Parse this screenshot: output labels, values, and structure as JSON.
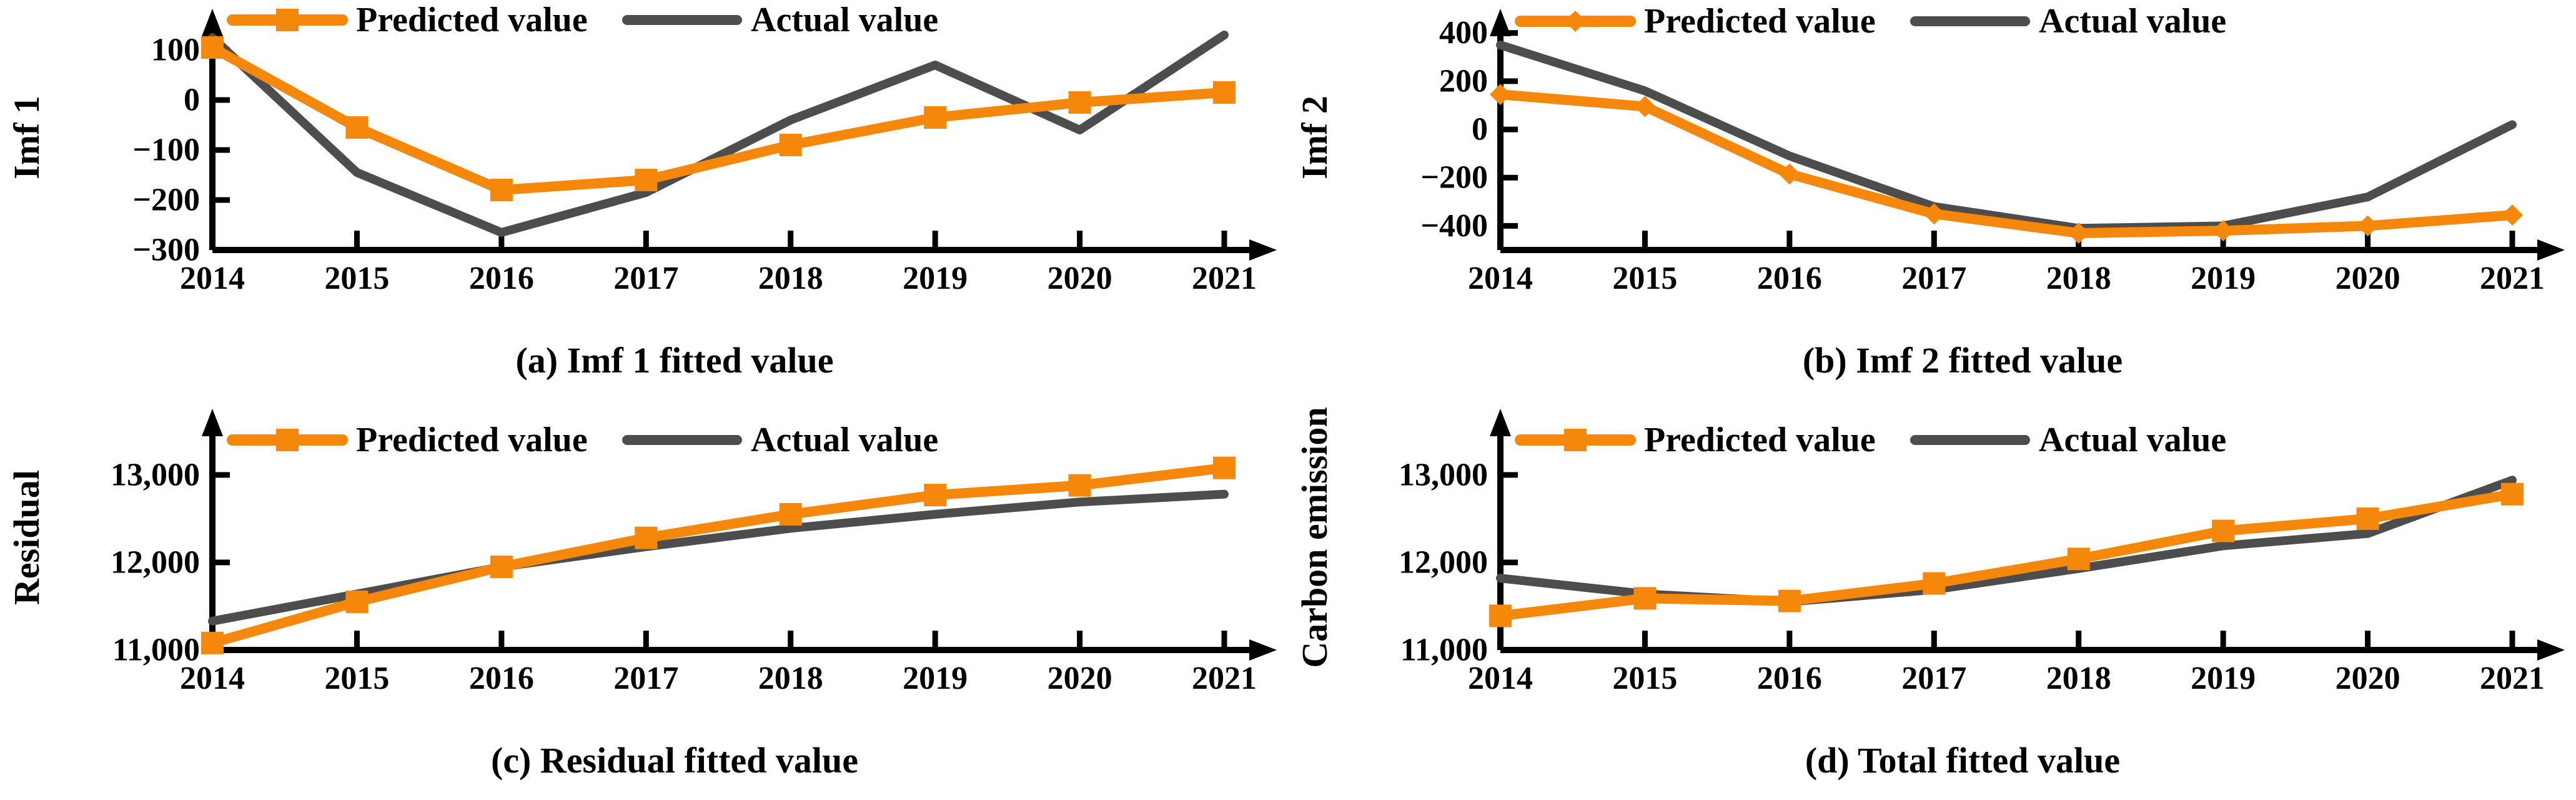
{
  "figure": {
    "background": "#ffffff",
    "legend": {
      "predicted_label": "Predicted value",
      "actual_label": "Actual value"
    },
    "colors": {
      "predicted": "#F5870A",
      "actual": "#4D4D4D",
      "axis": "#000000",
      "text": "#000000"
    }
  },
  "chart_data": [
    {
      "type": "line",
      "title": "(a) Imf 1 fitted value",
      "ylabel": "Imf 1",
      "xlabel": "",
      "x": [
        2014,
        2015,
        2016,
        2017,
        2018,
        2019,
        2020,
        2021
      ],
      "series": [
        {
          "name": "Predicted value",
          "color": "#F5870A",
          "marker": "square",
          "values": [
            105,
            -55,
            -180,
            -160,
            -90,
            -35,
            -5,
            15
          ]
        },
        {
          "name": "Actual value",
          "color": "#4D4D4D",
          "marker": "none",
          "values": [
            125,
            -145,
            -265,
            -185,
            -40,
            70,
            -60,
            130
          ]
        }
      ],
      "ylim": [
        -300,
        150
      ],
      "yticks": [
        {
          "v": 100,
          "label": "100"
        },
        {
          "v": 0,
          "label": "0"
        },
        {
          "v": -100,
          "label": "−100"
        },
        {
          "v": -200,
          "label": "−200"
        },
        {
          "v": -300,
          "label": "−300"
        }
      ],
      "grid": false,
      "legend_position": "top-inside"
    },
    {
      "type": "line",
      "title": "(b) Imf 2 fitted value",
      "ylabel": "Imf 2",
      "xlabel": "",
      "x": [
        2014,
        2015,
        2016,
        2017,
        2018,
        2019,
        2020,
        2021
      ],
      "series": [
        {
          "name": "Predicted value",
          "color": "#F5870A",
          "marker": "diamond",
          "values": [
            145,
            95,
            -185,
            -350,
            -430,
            -420,
            -400,
            -355
          ]
        },
        {
          "name": "Actual value",
          "color": "#4D4D4D",
          "marker": "none",
          "values": [
            350,
            160,
            -110,
            -320,
            -410,
            -400,
            -280,
            20
          ]
        }
      ],
      "ylim": [
        -500,
        433
      ],
      "yticks": [
        {
          "v": 400,
          "label": "400"
        },
        {
          "v": 200,
          "label": "200"
        },
        {
          "v": 0,
          "label": "0"
        },
        {
          "v": -200,
          "label": "−200"
        },
        {
          "v": -400,
          "label": "−400"
        }
      ],
      "grid": false,
      "legend_position": "top-inside"
    },
    {
      "type": "line",
      "title": "(c) Residual fitted value",
      "ylabel": "Residual",
      "xlabel": "",
      "x": [
        2014,
        2015,
        2016,
        2017,
        2018,
        2019,
        2020,
        2021
      ],
      "series": [
        {
          "name": "Predicted value",
          "color": "#F5870A",
          "marker": "square",
          "values": [
            11080,
            11550,
            11950,
            12280,
            12550,
            12770,
            12880,
            13080
          ]
        },
        {
          "name": "Actual value",
          "color": "#4D4D4D",
          "marker": "none",
          "values": [
            11330,
            11640,
            11950,
            12180,
            12390,
            12550,
            12690,
            12780
          ]
        }
      ],
      "ylim": [
        11000,
        13570
      ],
      "yticks": [
        {
          "v": 13000,
          "label": "13,000"
        },
        {
          "v": 12000,
          "label": "12,000"
        },
        {
          "v": 11000,
          "label": "11,000"
        }
      ],
      "grid": false,
      "legend_position": "top-inside"
    },
    {
      "type": "line",
      "title": "(d) Total fitted value",
      "ylabel": "Carbon emission",
      "xlabel": "",
      "x": [
        2014,
        2015,
        2016,
        2017,
        2018,
        2019,
        2020,
        2021
      ],
      "series": [
        {
          "name": "Predicted value",
          "color": "#F5870A",
          "marker": "square",
          "values": [
            11390,
            11590,
            11560,
            11760,
            12040,
            12360,
            12500,
            12780
          ]
        },
        {
          "name": "Actual value",
          "color": "#4D4D4D",
          "marker": "none",
          "values": [
            11820,
            11640,
            11550,
            11690,
            11930,
            12190,
            12330,
            12940
          ]
        }
      ],
      "ylim": [
        11000,
        13570
      ],
      "yticks": [
        {
          "v": 13000,
          "label": "13,000"
        },
        {
          "v": 12000,
          "label": "12,000"
        },
        {
          "v": 11000,
          "label": "11,000"
        }
      ],
      "grid": false,
      "legend_position": "top-inside"
    }
  ]
}
